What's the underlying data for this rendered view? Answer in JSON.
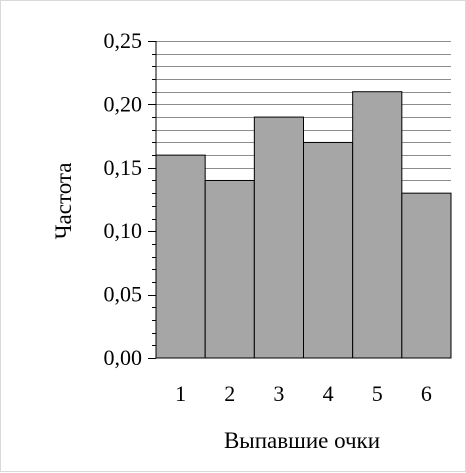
{
  "chart_data": {
    "type": "bar",
    "categories": [
      "1",
      "2",
      "3",
      "4",
      "5",
      "6"
    ],
    "values": [
      0.16,
      0.14,
      0.19,
      0.17,
      0.21,
      0.13
    ],
    "xlabel": "Выпавшие  очки",
    "ylabel": "Частота",
    "ylim": [
      0,
      0.25
    ],
    "yticks": [
      {
        "value": 0.0,
        "label": "0,00"
      },
      {
        "value": 0.05,
        "label": "0,05"
      },
      {
        "value": 0.1,
        "label": "0,10"
      },
      {
        "value": 0.15,
        "label": "0,15"
      },
      {
        "value": 0.2,
        "label": "0,20"
      },
      {
        "value": 0.25,
        "label": "0,25"
      }
    ],
    "minor_grid_step": 0.01,
    "grid": true,
    "bar_color": "#a6a6a6",
    "bar_edge_color": "#000000",
    "grid_color": "#8c8c8c"
  }
}
